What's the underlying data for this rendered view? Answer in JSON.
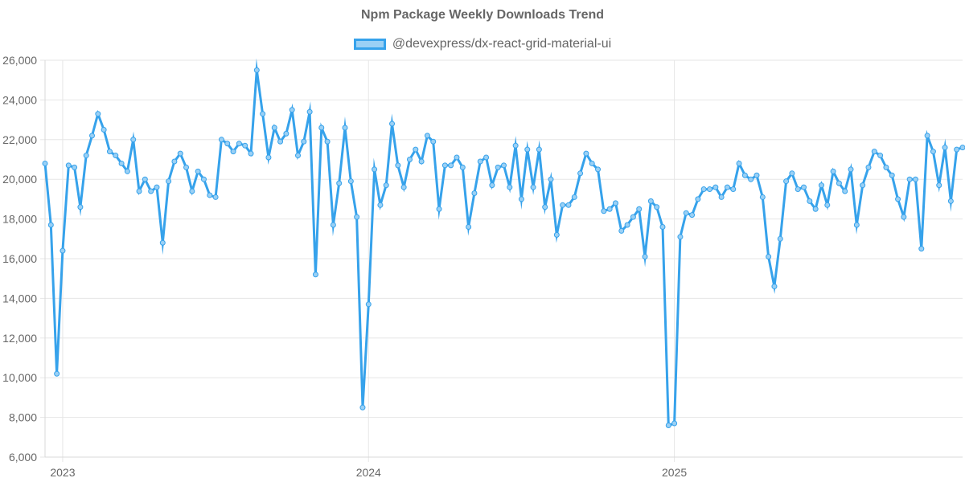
{
  "chart_data": {
    "type": "line",
    "title": "Npm Package Weekly Downloads Trend",
    "legend": [
      "@devexpress/dx-react-grid-material-ui"
    ],
    "series": [
      {
        "name": "@devexpress/dx-react-grid-material-ui",
        "color": "#36a2eb",
        "fill_color": "#9ad0f5",
        "values": [
          20800,
          17700,
          10200,
          16400,
          20700,
          20600,
          18600,
          21200,
          22200,
          23300,
          22500,
          21400,
          21200,
          20800,
          20400,
          22000,
          19400,
          20000,
          19400,
          19600,
          16800,
          19900,
          20900,
          21300,
          20600,
          19400,
          20400,
          20000,
          19200,
          19100,
          22000,
          21800,
          21400,
          21800,
          21700,
          21300,
          25500,
          23300,
          21100,
          22600,
          21900,
          22300,
          23500,
          21200,
          21900,
          23400,
          15200,
          22600,
          21900,
          17700,
          19800,
          22600,
          19900,
          18100,
          8500,
          13700,
          20500,
          18700,
          19700,
          22800,
          20700,
          19600,
          21000,
          21500,
          20900,
          22200,
          21900,
          18500,
          20700,
          20700,
          21100,
          20600,
          17600,
          19300,
          20900,
          21100,
          19700,
          20600,
          20700,
          19600,
          21700,
          19000,
          21500,
          19600,
          21500,
          18600,
          20000,
          17200,
          18700,
          18700,
          19100,
          20300,
          21300,
          20800,
          20500,
          18400,
          18500,
          18800,
          17400,
          17700,
          18100,
          18500,
          16100,
          18900,
          18600,
          17600,
          7600,
          7700,
          17100,
          18300,
          18200,
          19000,
          19500,
          19500,
          19600,
          19100,
          19600,
          19500,
          20800,
          20200,
          20000,
          20200,
          19100,
          16100,
          14600,
          17000,
          19900,
          20300,
          19500,
          19600,
          18900,
          18500,
          19700,
          18700,
          20400,
          19800,
          19400,
          20500,
          17700,
          19700,
          20600,
          21400,
          21200,
          20600,
          20200,
          19000,
          18100,
          20000,
          20000,
          16500,
          22200,
          21400,
          19700,
          21600,
          18900,
          21500,
          21600
        ]
      }
    ],
    "x_tick_labels": [
      "2023",
      "2024",
      "2025"
    ],
    "x_tick_indices": [
      3,
      55,
      107
    ],
    "y_tick_labels": [
      "6,000",
      "8,000",
      "10,000",
      "12,000",
      "14,000",
      "16,000",
      "18,000",
      "20,000",
      "22,000",
      "24,000",
      "26,000"
    ],
    "ylim": [
      6000,
      26000
    ],
    "ystep": 2000,
    "grid": true
  }
}
